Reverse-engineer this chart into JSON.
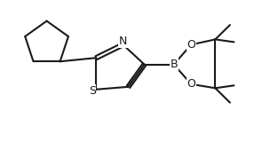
{
  "background": "#ffffff",
  "line_color": "#1a1a1a",
  "line_width": 1.5,
  "font_size": 9,
  "atom_labels": {
    "N": "N",
    "S": "S",
    "B": "B",
    "O1": "O",
    "O2": "O"
  }
}
